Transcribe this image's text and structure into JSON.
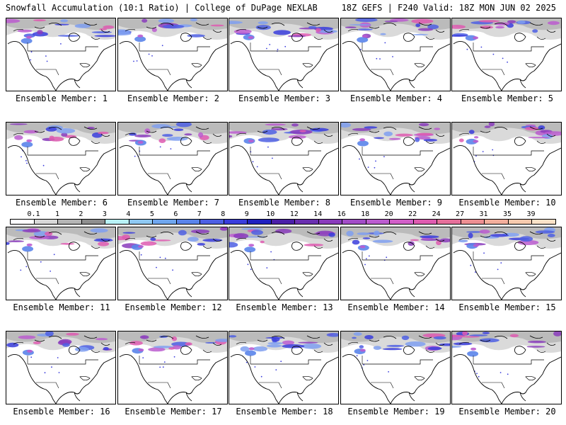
{
  "header": {
    "title": "Snowfall Accumulation (10:1 Ratio) | College of DuPage NEXLAB",
    "run": "18Z GEFS | F240 Valid: 18Z MON JUN 02 2025"
  },
  "panels": [
    {
      "label": "Ensemble Member: 1"
    },
    {
      "label": "Ensemble Member: 2"
    },
    {
      "label": "Ensemble Member: 3"
    },
    {
      "label": "Ensemble Member: 4"
    },
    {
      "label": "Ensemble Member: 5"
    },
    {
      "label": "Ensemble Member: 6"
    },
    {
      "label": "Ensemble Member: 7"
    },
    {
      "label": "Ensemble Member: 8"
    },
    {
      "label": "Ensemble Member: 9"
    },
    {
      "label": "Ensemble Member: 10"
    },
    {
      "label": "Ensemble Member: 11"
    },
    {
      "label": "Ensemble Member: 12"
    },
    {
      "label": "Ensemble Member: 13"
    },
    {
      "label": "Ensemble Member: 14"
    },
    {
      "label": "Ensemble Member: 15"
    },
    {
      "label": "Ensemble Member: 16"
    },
    {
      "label": "Ensemble Member: 17"
    },
    {
      "label": "Ensemble Member: 18"
    },
    {
      "label": "Ensemble Member: 19"
    },
    {
      "label": "Ensemble Member: 20"
    }
  ],
  "legend": {
    "labels": [
      "0.1",
      "1",
      "2",
      "3",
      "4",
      "5",
      "6",
      "7",
      "8",
      "9",
      "10",
      "12",
      "14",
      "16",
      "18",
      "20",
      "22",
      "24",
      "27",
      "31",
      "35",
      "39"
    ],
    "colors": [
      "#ffffff",
      "#d8d8d8",
      "#b5b5b5",
      "#8f8f8f",
      "#b9f2f7",
      "#8fc8f2",
      "#6fa6ee",
      "#5a84ea",
      "#4d5fe3",
      "#3a3ddc",
      "#2020c0",
      "#4b1fa8",
      "#6a2fb0",
      "#8a3cbc",
      "#a24cc7",
      "#bb5ccf",
      "#d15fc8",
      "#de5bb0",
      "#e56f9a",
      "#ec8f92",
      "#f2ae9c",
      "#f7caae",
      "#fbe2c8"
    ]
  }
}
